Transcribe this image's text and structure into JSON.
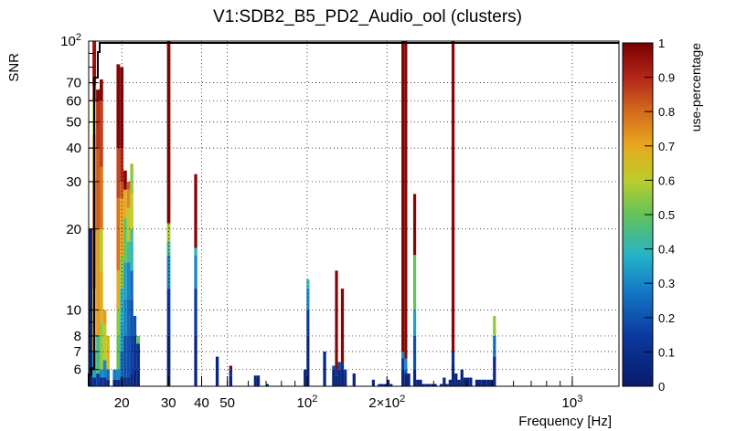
{
  "chart_data": {
    "type": "heatmap",
    "title": "V1:SDB2_B5_PD2_Audio_ool (clusters)",
    "xlabel": "Frequency [Hz]",
    "ylabel": "SNR",
    "xscale": "log",
    "yscale": "log",
    "xlim": [
      15,
      1500
    ],
    "ylim": [
      5.2,
      100
    ],
    "x_ticks": [
      {
        "value": 20,
        "label": "20"
      },
      {
        "value": 30,
        "label": "30"
      },
      {
        "value": 40,
        "label": "40"
      },
      {
        "value": 50,
        "label": "50"
      },
      {
        "value": 100,
        "label": "10",
        "sup": "2"
      },
      {
        "value": 200,
        "label": "2×10",
        "sup": "2"
      },
      {
        "value": 1000,
        "label": "10",
        "sup": "3"
      }
    ],
    "y_ticks": [
      {
        "value": 6,
        "label": "6"
      },
      {
        "value": 7,
        "label": "7"
      },
      {
        "value": 8,
        "label": "8"
      },
      {
        "value": 10,
        "label": "10"
      },
      {
        "value": 20,
        "label": "20"
      },
      {
        "value": 30,
        "label": "30"
      },
      {
        "value": 40,
        "label": "40"
      },
      {
        "value": 50,
        "label": "50"
      },
      {
        "value": 60,
        "label": "60"
      },
      {
        "value": 70,
        "label": "70"
      },
      {
        "value": 100,
        "label": "10",
        "sup": "2"
      }
    ],
    "grid": true,
    "colorbar": {
      "label": "use-percentage",
      "range": [
        0,
        1
      ],
      "ticks": [
        "0",
        "0.1",
        "0.2",
        "0.3",
        "0.4",
        "0.5",
        "0.6",
        "0.7",
        "0.8",
        "0.9",
        "1"
      ]
    },
    "columns": [
      {
        "x0": 15.0,
        "x1": 15.5,
        "cells": [
          [
            5.2,
            20,
            0.05
          ]
        ]
      },
      {
        "x0": 15.5,
        "x1": 16.0,
        "cells": [
          [
            5.2,
            5.6,
            0.1
          ],
          [
            5.6,
            7,
            0.35
          ],
          [
            7,
            12,
            0.7
          ],
          [
            12,
            30,
            0.8
          ],
          [
            30,
            45,
            0.75
          ],
          [
            45,
            60,
            0.6
          ],
          [
            60,
            68,
            0.85
          ],
          [
            68,
            100,
            0.95
          ]
        ]
      },
      {
        "x0": 16.0,
        "x1": 16.5,
        "cells": [
          [
            5.2,
            5.8,
            0.15
          ],
          [
            5.8,
            8,
            0.45
          ],
          [
            8,
            20,
            0.72
          ],
          [
            20,
            40,
            0.82
          ],
          [
            40,
            60,
            0.88
          ],
          [
            60,
            66,
            0.98
          ]
        ]
      },
      {
        "x0": 16.5,
        "x1": 17.0,
        "cells": [
          [
            5.2,
            5.6,
            0.1
          ],
          [
            5.6,
            6,
            0.3
          ],
          [
            6,
            9,
            0.55
          ],
          [
            9,
            14,
            0.68
          ],
          [
            14,
            20,
            0.6
          ],
          [
            20,
            34,
            0.78
          ],
          [
            34,
            60,
            0.86
          ],
          [
            60,
            72,
            0.98
          ]
        ]
      },
      {
        "x0": 17.0,
        "x1": 17.5,
        "cells": [
          [
            5.2,
            5.6,
            0.1
          ],
          [
            5.6,
            6.5,
            0.3
          ],
          [
            6.5,
            8.8,
            0.6
          ],
          [
            8.8,
            10,
            0.72
          ]
        ]
      },
      {
        "x0": 17.5,
        "x1": 18.0,
        "cells": [
          [
            5.2,
            5.5,
            0.05
          ],
          [
            5.5,
            6,
            0.25
          ],
          [
            6,
            8,
            0.65
          ]
        ]
      },
      {
        "x0": 18.5,
        "x1": 19.1,
        "cells": [
          [
            5.2,
            5.5,
            0.05
          ],
          [
            5.5,
            6,
            0.28
          ]
        ]
      },
      {
        "x0": 19.1,
        "x1": 19.7,
        "cells": [
          [
            5.2,
            5.5,
            0.08
          ],
          [
            5.5,
            6,
            0.3
          ],
          [
            6,
            8,
            0.5
          ],
          [
            8,
            10,
            0.55
          ],
          [
            10,
            14,
            0.68
          ],
          [
            14,
            26,
            0.78
          ],
          [
            26,
            40,
            0.85
          ],
          [
            40,
            82,
            0.98
          ]
        ]
      },
      {
        "x0": 19.7,
        "x1": 20.3,
        "cells": [
          [
            5.2,
            5.6,
            0.1
          ],
          [
            5.6,
            7,
            0.25
          ],
          [
            7,
            9,
            0.35
          ],
          [
            9,
            12,
            0.4
          ],
          [
            12,
            16,
            0.55
          ],
          [
            16,
            26,
            0.7
          ],
          [
            26,
            30,
            0.82
          ],
          [
            30,
            40,
            0.9
          ],
          [
            40,
            80,
            0.98
          ]
        ]
      },
      {
        "x0": 20.3,
        "x1": 20.9,
        "cells": [
          [
            5.2,
            5.6,
            0.08
          ],
          [
            5.6,
            8,
            0.2
          ],
          [
            8,
            11,
            0.3
          ],
          [
            11,
            15,
            0.35
          ],
          [
            15,
            22,
            0.5
          ],
          [
            22,
            28,
            0.7
          ],
          [
            28,
            33,
            0.98
          ]
        ]
      },
      {
        "x0": 20.9,
        "x1": 21.5,
        "cells": [
          [
            5.2,
            5.6,
            0.1
          ],
          [
            5.6,
            8,
            0.2
          ],
          [
            8,
            11,
            0.25
          ],
          [
            11,
            15,
            0.3
          ],
          [
            15,
            18,
            0.45
          ],
          [
            18,
            24,
            0.62
          ],
          [
            24,
            28,
            0.75
          ],
          [
            28,
            30,
            0.82
          ]
        ]
      },
      {
        "x0": 21.5,
        "x1": 22.1,
        "cells": [
          [
            5.2,
            5.8,
            0.05
          ],
          [
            5.8,
            8,
            0.15
          ],
          [
            8,
            11,
            0.2
          ],
          [
            11,
            14,
            0.25
          ],
          [
            14,
            18,
            0.4
          ],
          [
            18,
            20,
            0.45
          ],
          [
            20,
            27,
            0.6
          ],
          [
            27,
            35,
            0.55
          ]
        ]
      },
      {
        "x0": 22.1,
        "x1": 22.7,
        "cells": [
          [
            5.2,
            6,
            0.05
          ],
          [
            6,
            8,
            0.12
          ],
          [
            8,
            9.5,
            0.2
          ]
        ]
      },
      {
        "x0": 22.7,
        "x1": 23.4,
        "cells": [
          [
            5.2,
            6,
            0.05
          ],
          [
            6,
            7.5,
            0.1
          ],
          [
            7.5,
            8,
            0.5
          ]
        ]
      },
      {
        "x0": 29.6,
        "x1": 30.5,
        "cells": [
          [
            5.2,
            8,
            0.05
          ],
          [
            8,
            12,
            0.15
          ],
          [
            12,
            16,
            0.3
          ],
          [
            16,
            18,
            0.45
          ],
          [
            18,
            21,
            0.58
          ],
          [
            21,
            100,
            0.98
          ]
        ]
      },
      {
        "x0": 37.5,
        "x1": 38.5,
        "cells": [
          [
            5.2,
            8,
            0.05
          ],
          [
            8,
            12,
            0.15
          ],
          [
            12,
            16,
            0.3
          ],
          [
            16,
            17,
            0.4
          ],
          [
            17,
            32,
            0.98
          ]
        ]
      },
      {
        "x0": 45.2,
        "x1": 46.4,
        "cells": [
          [
            5.2,
            6.7,
            0.05
          ]
        ]
      },
      {
        "x0": 50.8,
        "x1": 52.2,
        "cells": [
          [
            5.2,
            5.7,
            0.05
          ],
          [
            5.7,
            6,
            0.1
          ],
          [
            6,
            6.2,
            0.98
          ]
        ]
      },
      {
        "x0": 63.0,
        "x1": 64.6,
        "cells": [
          [
            5.2,
            5.7,
            0.05
          ]
        ]
      },
      {
        "x0": 64.6,
        "x1": 66.3,
        "cells": [
          [
            5.2,
            5.7,
            0.05
          ]
        ]
      },
      {
        "x0": 69.9,
        "x1": 71.7,
        "cells": [
          [
            5.2,
            5.3,
            0.05
          ]
        ]
      },
      {
        "x0": 97.0,
        "x1": 99.5,
        "cells": [
          [
            5.2,
            6,
            0.05
          ]
        ]
      },
      {
        "x0": 99.5,
        "x1": 102,
        "cells": [
          [
            5.2,
            8,
            0.05
          ],
          [
            8,
            10,
            0.15
          ],
          [
            10,
            12,
            0.3
          ],
          [
            12,
            13,
            0.4
          ]
        ]
      },
      {
        "x0": 114.9,
        "x1": 117.9,
        "cells": [
          [
            5.2,
            7,
            0.05
          ]
        ]
      },
      {
        "x0": 124.2,
        "x1": 127.4,
        "cells": [
          [
            5.2,
            6,
            0.05
          ],
          [
            6,
            6.2,
            0.2
          ]
        ]
      },
      {
        "x0": 127.4,
        "x1": 130.7,
        "cells": [
          [
            5.2,
            5.7,
            0.05
          ],
          [
            5.7,
            6,
            0.1
          ],
          [
            6,
            14,
            0.98
          ]
        ]
      },
      {
        "x0": 130.7,
        "x1": 134.1,
        "cells": [
          [
            5.2,
            6,
            0.05
          ],
          [
            6,
            6.4,
            0.18
          ]
        ]
      },
      {
        "x0": 134.1,
        "x1": 137.6,
        "cells": [
          [
            5.2,
            6,
            0.05
          ],
          [
            6,
            6.3,
            0.1
          ],
          [
            6.3,
            12,
            0.98
          ]
        ]
      },
      {
        "x0": 137.6,
        "x1": 141.1,
        "cells": [
          [
            5.2,
            5.8,
            0.05
          ],
          [
            5.8,
            6,
            0.1
          ]
        ]
      },
      {
        "x0": 148.4,
        "x1": 152.3,
        "cells": [
          [
            5.2,
            5.8,
            0.05
          ]
        ]
      },
      {
        "x0": 175.5,
        "x1": 180,
        "cells": [
          [
            5.2,
            5.5,
            0.05
          ]
        ]
      },
      {
        "x0": 184.7,
        "x1": 189.5,
        "cells": [
          [
            5.2,
            5.3,
            0.05
          ]
        ]
      },
      {
        "x0": 189.5,
        "x1": 194.4,
        "cells": [
          [
            5.2,
            5.3,
            0.05
          ]
        ]
      },
      {
        "x0": 194.4,
        "x1": 199.5,
        "cells": [
          [
            5.2,
            5.3,
            0.05
          ]
        ]
      },
      {
        "x0": 199.5,
        "x1": 204.6,
        "cells": [
          [
            5.2,
            5.5,
            0.05
          ]
        ]
      },
      {
        "x0": 204.6,
        "x1": 210,
        "cells": [
          [
            5.2,
            5.3,
            0.05
          ]
        ]
      },
      {
        "x0": 226.7,
        "x1": 232.6,
        "cells": [
          [
            5.2,
            6,
            0.05
          ],
          [
            6,
            6.6,
            0.15
          ],
          [
            6.6,
            7,
            0.3
          ],
          [
            7,
            100,
            0.98
          ]
        ]
      },
      {
        "x0": 232.6,
        "x1": 238.6,
        "cells": [
          [
            5.2,
            5.8,
            0.05
          ],
          [
            5.8,
            6,
            0.2
          ],
          [
            6,
            6.6,
            0.3
          ],
          [
            6.6,
            100,
            0.98
          ]
        ]
      },
      {
        "x0": 238.6,
        "x1": 244.8,
        "cells": [
          [
            5.2,
            5.8,
            0.05
          ]
        ]
      },
      {
        "x0": 251.2,
        "x1": 257.7,
        "cells": [
          [
            5.2,
            6,
            0.05
          ],
          [
            6,
            8,
            0.2
          ],
          [
            8,
            10,
            0.35
          ],
          [
            10,
            16,
            0.5
          ],
          [
            16,
            27,
            0.98
          ]
        ]
      },
      {
        "x0": 257.7,
        "x1": 264.4,
        "cells": [
          [
            5.2,
            5.5,
            0.05
          ]
        ]
      },
      {
        "x0": 264.4,
        "x1": 271.3,
        "cells": [
          [
            5.2,
            5.5,
            0.05
          ]
        ]
      },
      {
        "x0": 271.3,
        "x1": 278.3,
        "cells": [
          [
            5.2,
            5.3,
            0.05
          ]
        ]
      },
      {
        "x0": 278.3,
        "x1": 285.6,
        "cells": [
          [
            5.2,
            5.3,
            0.05
          ]
        ]
      },
      {
        "x0": 285.6,
        "x1": 293,
        "cells": [
          [
            5.2,
            5.3,
            0.05
          ]
        ]
      },
      {
        "x0": 293,
        "x1": 300.6,
        "cells": [
          [
            5.2,
            5.3,
            0.05
          ]
        ]
      },
      {
        "x0": 300.6,
        "x1": 308.4,
        "cells": [
          [
            5.2,
            5.3,
            0.05
          ]
        ]
      },
      {
        "x0": 316.4,
        "x1": 324.7,
        "cells": [
          [
            5.2,
            5.3,
            0.05
          ]
        ]
      },
      {
        "x0": 324.7,
        "x1": 333.1,
        "cells": [
          [
            5.2,
            5.6,
            0.05
          ]
        ]
      },
      {
        "x0": 333.1,
        "x1": 341.8,
        "cells": [
          [
            5.2,
            5.3,
            0.05
          ]
        ]
      },
      {
        "x0": 341.8,
        "x1": 350.6,
        "cells": [
          [
            5.2,
            5.5,
            0.05
          ]
        ]
      },
      {
        "x0": 350.6,
        "x1": 359.7,
        "cells": [
          [
            5.2,
            6.3,
            0.05
          ],
          [
            6.3,
            7,
            0.1
          ],
          [
            7,
            100,
            0.98
          ]
        ]
      },
      {
        "x0": 359.7,
        "x1": 369.1,
        "cells": [
          [
            5.2,
            5.8,
            0.05
          ]
        ]
      },
      {
        "x0": 369.1,
        "x1": 378.7,
        "cells": [
          [
            5.2,
            5.5,
            0.05
          ]
        ]
      },
      {
        "x0": 378.7,
        "x1": 388.5,
        "cells": [
          [
            5.2,
            6,
            0.05
          ]
        ]
      },
      {
        "x0": 388.5,
        "x1": 398.6,
        "cells": [
          [
            5.2,
            5.6,
            0.05
          ]
        ]
      },
      {
        "x0": 398.6,
        "x1": 408.9,
        "cells": [
          [
            5.2,
            5.6,
            0.05
          ]
        ]
      },
      {
        "x0": 408.9,
        "x1": 419.6,
        "cells": [
          [
            5.2,
            5.6,
            0.05
          ]
        ]
      },
      {
        "x0": 430.5,
        "x1": 441.7,
        "cells": [
          [
            5.2,
            5.5,
            0.05
          ]
        ]
      },
      {
        "x0": 441.7,
        "x1": 453.2,
        "cells": [
          [
            5.2,
            5.5,
            0.05
          ]
        ]
      },
      {
        "x0": 453.2,
        "x1": 465,
        "cells": [
          [
            5.2,
            5.5,
            0.05
          ]
        ]
      },
      {
        "x0": 465,
        "x1": 477.1,
        "cells": [
          [
            5.2,
            5.5,
            0.05
          ]
        ]
      },
      {
        "x0": 477.1,
        "x1": 489.5,
        "cells": [
          [
            5.2,
            5.5,
            0.05
          ]
        ]
      },
      {
        "x0": 489.5,
        "x1": 502.2,
        "cells": [
          [
            5.2,
            5.5,
            0.05
          ]
        ]
      },
      {
        "x0": 502.2,
        "x1": 515.2,
        "cells": [
          [
            5.2,
            6.7,
            0.05
          ],
          [
            6.7,
            8,
            0.25
          ],
          [
            8,
            9.5,
            0.55
          ]
        ]
      }
    ]
  }
}
